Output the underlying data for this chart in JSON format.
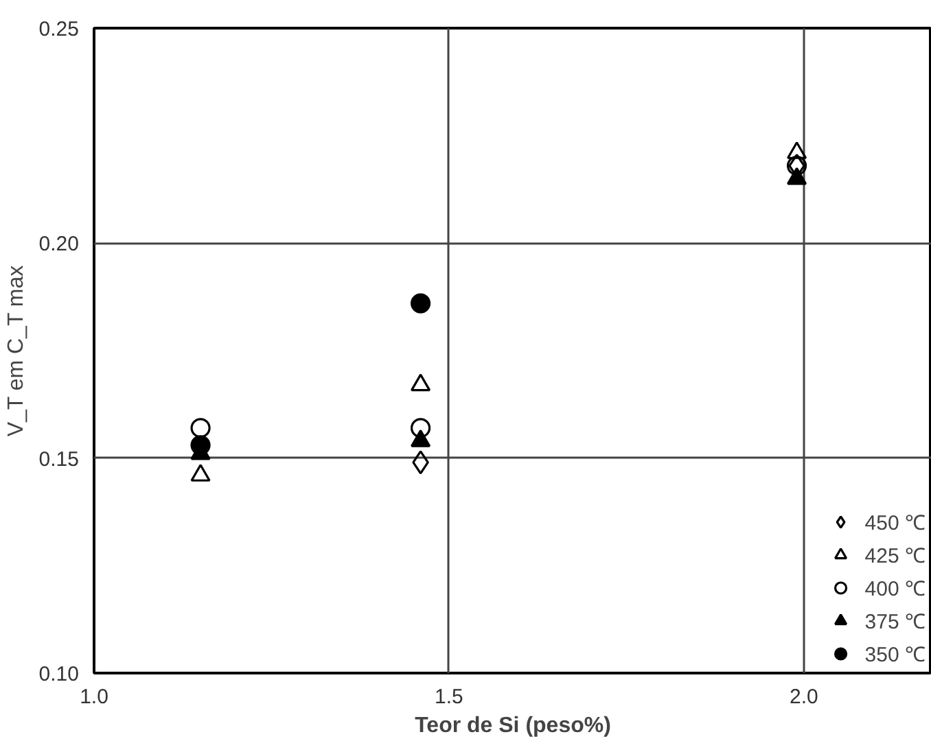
{
  "chart_data": {
    "type": "scatter",
    "xlabel": "Teor de Si (peso%)",
    "ylabel": "V_T em C_T max",
    "x": [
      1.15,
      1.46,
      1.99
    ],
    "series": [
      {
        "name": "450 ℃",
        "color": "#000000",
        "marker": "diamond_open",
        "values": [
          null,
          0.149,
          0.218
        ]
      },
      {
        "name": "425 ℃",
        "color": "#000000",
        "marker": "triangle_open",
        "values": [
          0.146,
          0.167,
          0.221
        ]
      },
      {
        "name": "400 ℃",
        "color": "#000000",
        "marker": "circle_open",
        "values": [
          0.157,
          0.157,
          0.218
        ]
      },
      {
        "name": "375 ℃",
        "color": "#000000",
        "marker": "triangle",
        "values": [
          0.151,
          0.154,
          0.215
        ]
      },
      {
        "name": "350 ℃",
        "color": "#000000",
        "marker": "circle",
        "values": [
          0.153,
          0.186,
          null
        ]
      }
    ],
    "xlim": [
      1.0,
      2.18
    ],
    "ylim": [
      0.1,
      0.25
    ],
    "xticks": [
      {
        "value": 1.0,
        "label": "1.0"
      },
      1.5,
      {
        "value": 2.0,
        "label": "2.0"
      }
    ],
    "yticks": [
      {
        "value": 0.1,
        "label": "0.10"
      },
      0.15,
      {
        "value": 0.2,
        "label": "0.20"
      },
      0.25
    ],
    "grid": true,
    "legend": "bottom right"
  }
}
